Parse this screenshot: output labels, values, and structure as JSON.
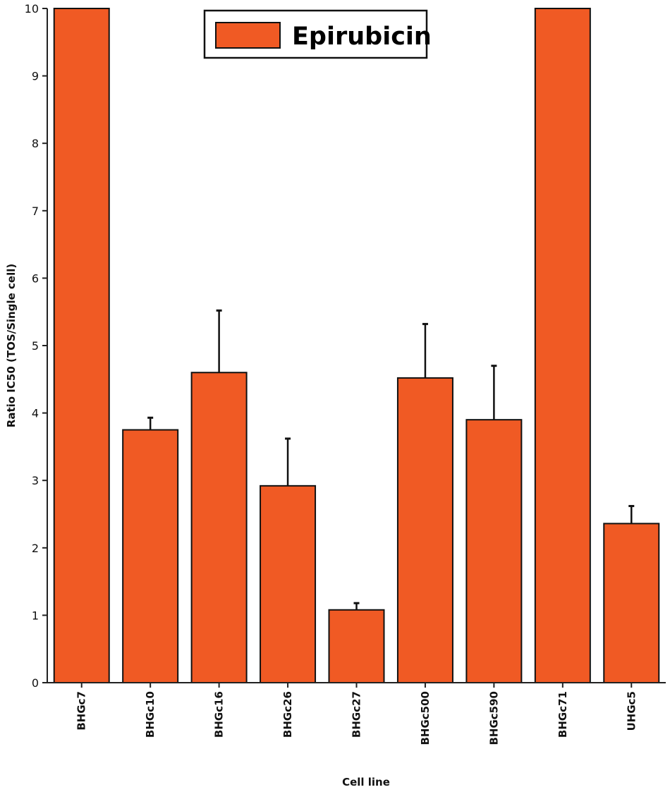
{
  "chart_data": {
    "type": "bar",
    "title": "",
    "xlabel": "Cell line",
    "ylabel": "Ratio IC50  (TOS/Single cell)",
    "ylim": [
      0,
      10
    ],
    "yticks": [
      "0",
      "1",
      "2",
      "3",
      "4",
      "5",
      "6",
      "7",
      "8",
      "9",
      "10"
    ],
    "categories": [
      "BHGc7",
      "BHGc10",
      "BHGc16",
      "BHGc26",
      "BHGc27",
      "BHGc500",
      "BHGc590",
      "BHGc71",
      "UHGc5"
    ],
    "series": [
      {
        "name": "Epirubicin",
        "color": "#F05A24",
        "values": [
          10,
          3.75,
          4.6,
          2.92,
          1.08,
          4.52,
          3.9,
          10,
          2.36
        ],
        "errors": [
          null,
          0.18,
          0.92,
          0.7,
          0.1,
          0.8,
          0.8,
          null,
          0.26
        ]
      }
    ],
    "legend": {
      "label": "Epirubicin",
      "position": "top-center"
    }
  }
}
